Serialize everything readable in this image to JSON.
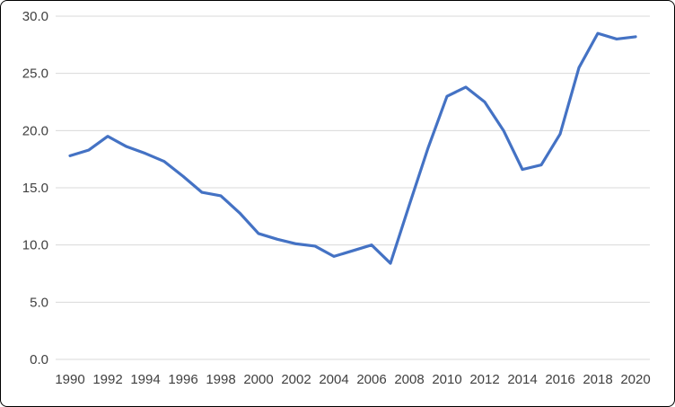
{
  "chart_data": {
    "type": "line",
    "title": "",
    "xlabel": "",
    "ylabel": "",
    "x": [
      1990,
      1991,
      1992,
      1993,
      1994,
      1995,
      1996,
      1997,
      1998,
      1999,
      2000,
      2001,
      2002,
      2003,
      2004,
      2005,
      2006,
      2007,
      2008,
      2009,
      2010,
      2011,
      2012,
      2013,
      2014,
      2015,
      2016,
      2017,
      2018,
      2019,
      2020
    ],
    "series": [
      {
        "name": "value",
        "values": [
          17.8,
          18.3,
          19.5,
          18.6,
          18.0,
          17.3,
          16.0,
          14.6,
          14.3,
          12.8,
          11.0,
          10.5,
          10.1,
          9.9,
          9.0,
          9.5,
          10.0,
          8.4,
          13.5,
          18.5,
          23.0,
          23.8,
          22.5,
          20.0,
          16.6,
          17.0,
          19.7,
          25.5,
          28.5,
          28.0,
          28.2
        ]
      }
    ],
    "ylim": [
      0,
      30
    ],
    "yticks": [
      0,
      5,
      10,
      15,
      20,
      25,
      30
    ],
    "ytick_format_decimals": 1,
    "xticks": [
      1990,
      1992,
      1994,
      1996,
      1998,
      2000,
      2002,
      2004,
      2006,
      2008,
      2010,
      2012,
      2014,
      2016,
      2018,
      2020
    ],
    "grid": "horizontal",
    "legend": "none",
    "colors": {
      "line": "#4472C4",
      "grid": "#D9D9D9",
      "tick_label": "#404040",
      "frame_border": "#000000",
      "background": "#FFFFFF"
    },
    "line_width": 3.2,
    "tick_font_size": 15
  }
}
